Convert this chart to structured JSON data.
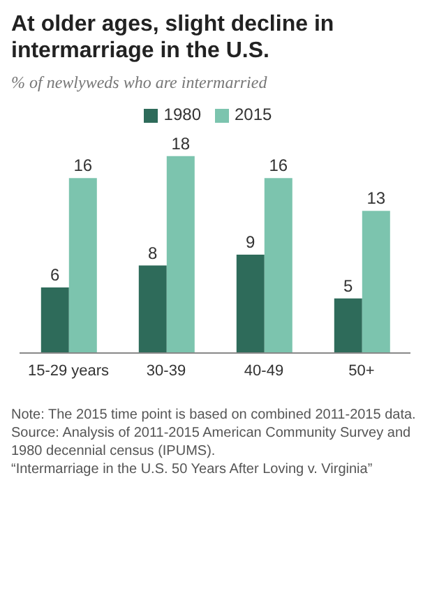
{
  "chart_data": {
    "type": "bar",
    "title": "At older ages, slight decline in intermarriage in the U.S.",
    "subtitle": "% of newlyweds who are intermarried",
    "categories": [
      "15-29 years",
      "30-39",
      "40-49",
      "50+"
    ],
    "series": [
      {
        "name": "1980",
        "color": "#2e6b5a",
        "values": [
          6,
          8,
          9,
          5
        ]
      },
      {
        "name": "2015",
        "color": "#7cc4ae",
        "values": [
          16,
          18,
          16,
          13
        ]
      }
    ],
    "data_labels": true,
    "legend": "top",
    "annotations": [
      "Note: The 2015 time point is based on combined 2011-2015 data.",
      "Source: Analysis of 2011-2015 American Community Survey and 1980 decennial census (IPUMS).",
      "“Intermarriage in the U.S. 50 Years After Loving v. Virginia”"
    ]
  }
}
